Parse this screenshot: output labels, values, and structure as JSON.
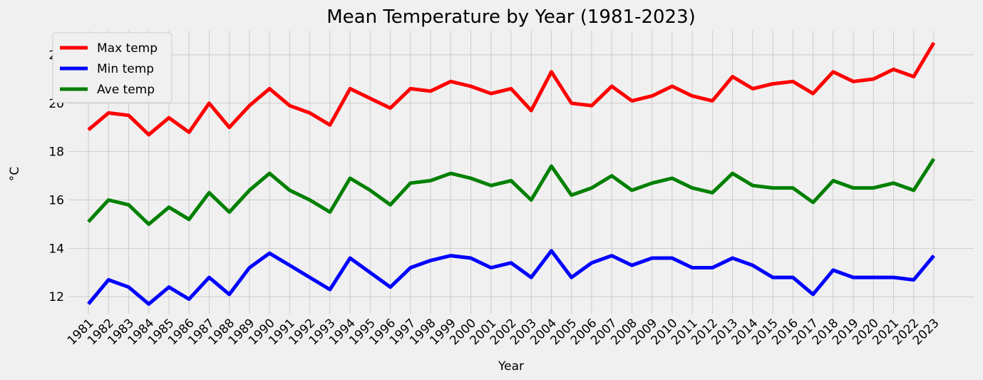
{
  "chart_data": {
    "type": "line",
    "title": "Mean Temperature by Year (1981-2023)",
    "xlabel": "Year",
    "ylabel": "°C",
    "ylim": [
      11.3,
      23.0
    ],
    "yticks": [
      12,
      14,
      16,
      18,
      20,
      22
    ],
    "grid": true,
    "legend_position": "top-left",
    "x": [
      "1981",
      "1982",
      "1983",
      "1984",
      "1985",
      "1986",
      "1987",
      "1988",
      "1989",
      "1990",
      "1991",
      "1992",
      "1993",
      "1994",
      "1995",
      "1996",
      "1997",
      "1998",
      "1999",
      "2000",
      "2001",
      "2002",
      "2003",
      "2004",
      "2005",
      "2006",
      "2007",
      "2008",
      "2009",
      "2010",
      "2011",
      "2012",
      "2013",
      "2014",
      "2015",
      "2016",
      "2017",
      "2018",
      "2019",
      "2020",
      "2021",
      "2022",
      "2023"
    ],
    "series": [
      {
        "name": "Max temp",
        "color": "#ff0000",
        "values": [
          18.9,
          19.6,
          19.5,
          18.7,
          19.4,
          18.8,
          20.0,
          19.0,
          19.9,
          20.6,
          19.9,
          19.6,
          19.1,
          20.6,
          20.2,
          19.8,
          20.6,
          20.5,
          20.9,
          20.7,
          20.4,
          20.6,
          19.7,
          21.3,
          20.0,
          19.9,
          20.7,
          20.1,
          20.3,
          20.7,
          20.3,
          20.1,
          21.1,
          20.6,
          20.8,
          20.9,
          20.4,
          21.3,
          20.9,
          21.0,
          21.4,
          21.1,
          22.5
        ]
      },
      {
        "name": "Min temp",
        "color": "#0000ff",
        "values": [
          11.7,
          12.7,
          12.4,
          11.7,
          12.4,
          11.9,
          12.8,
          12.1,
          13.2,
          13.8,
          13.3,
          12.8,
          12.3,
          13.6,
          13.0,
          12.4,
          13.2,
          13.5,
          13.7,
          13.6,
          13.2,
          13.4,
          12.8,
          13.9,
          12.8,
          13.4,
          13.7,
          13.3,
          13.6,
          13.6,
          13.2,
          13.2,
          13.6,
          13.3,
          12.8,
          12.8,
          12.1,
          13.1,
          12.8,
          12.8,
          12.8,
          12.7,
          13.7
        ]
      },
      {
        "name": "Ave temp",
        "color": "#008000",
        "values": [
          15.1,
          16.0,
          15.8,
          15.0,
          15.7,
          15.2,
          16.3,
          15.5,
          16.4,
          17.1,
          16.4,
          16.0,
          15.5,
          16.9,
          16.4,
          15.8,
          16.7,
          16.8,
          17.1,
          16.9,
          16.6,
          16.8,
          16.0,
          17.4,
          16.2,
          16.5,
          17.0,
          16.4,
          16.7,
          16.9,
          16.5,
          16.3,
          17.1,
          16.6,
          16.5,
          16.5,
          15.9,
          16.8,
          16.5,
          16.5,
          16.7,
          16.4,
          17.7
        ]
      }
    ]
  }
}
